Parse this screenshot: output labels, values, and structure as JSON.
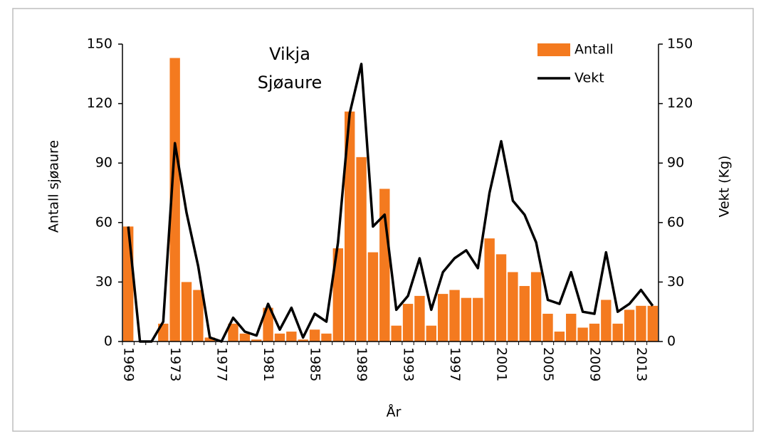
{
  "chart_data": {
    "type": "bar_line",
    "title": [
      "Vikja",
      "Sjøaure"
    ],
    "x_label": "År",
    "y_label": "Antall sjøaure",
    "y2_label": "Vekt (Kg)",
    "categories": [
      "1969",
      null,
      null,
      null,
      "1973",
      null,
      null,
      null,
      "1977",
      null,
      null,
      null,
      "1981",
      null,
      null,
      null,
      "1985",
      null,
      null,
      null,
      "1989",
      null,
      null,
      null,
      "1993",
      null,
      null,
      null,
      "1997",
      null,
      null,
      null,
      "2001",
      null,
      null,
      null,
      "2005",
      null,
      null,
      null,
      "2009",
      null,
      null,
      null,
      "2013",
      null
    ],
    "series": [
      {
        "name": "Antall",
        "color": "#f47a1f",
        "kind": "bar",
        "values": [
          58,
          0,
          0,
          9,
          143,
          30,
          26,
          2,
          0,
          9,
          4,
          1,
          17,
          4,
          5,
          1,
          6,
          4,
          47,
          116,
          93,
          45,
          77,
          8,
          19,
          23,
          8,
          24,
          26,
          22,
          22,
          52,
          44,
          35,
          28,
          35,
          14,
          5,
          14,
          7,
          9,
          21,
          9,
          16,
          18,
          18
        ]
      },
      {
        "name": "Vekt",
        "color": "#000000",
        "kind": "line",
        "axis": "y2",
        "values": [
          58,
          0,
          0,
          10,
          100,
          65,
          38,
          2,
          0,
          12,
          5,
          3,
          19,
          6,
          17,
          2,
          14,
          10,
          50,
          115,
          140,
          58,
          64,
          16,
          23,
          42,
          16,
          35,
          42,
          46,
          37,
          75,
          101,
          71,
          64,
          50,
          21,
          19,
          35,
          15,
          14,
          45,
          15,
          19,
          26,
          18
        ]
      }
    ],
    "ylim": [
      0,
      150
    ],
    "yticks": [
      0,
      30,
      60,
      90,
      120,
      150
    ],
    "y2lim": [
      0,
      150
    ],
    "y2ticks": [
      0,
      30,
      60,
      90,
      120,
      150
    ],
    "legend": "top-right"
  }
}
